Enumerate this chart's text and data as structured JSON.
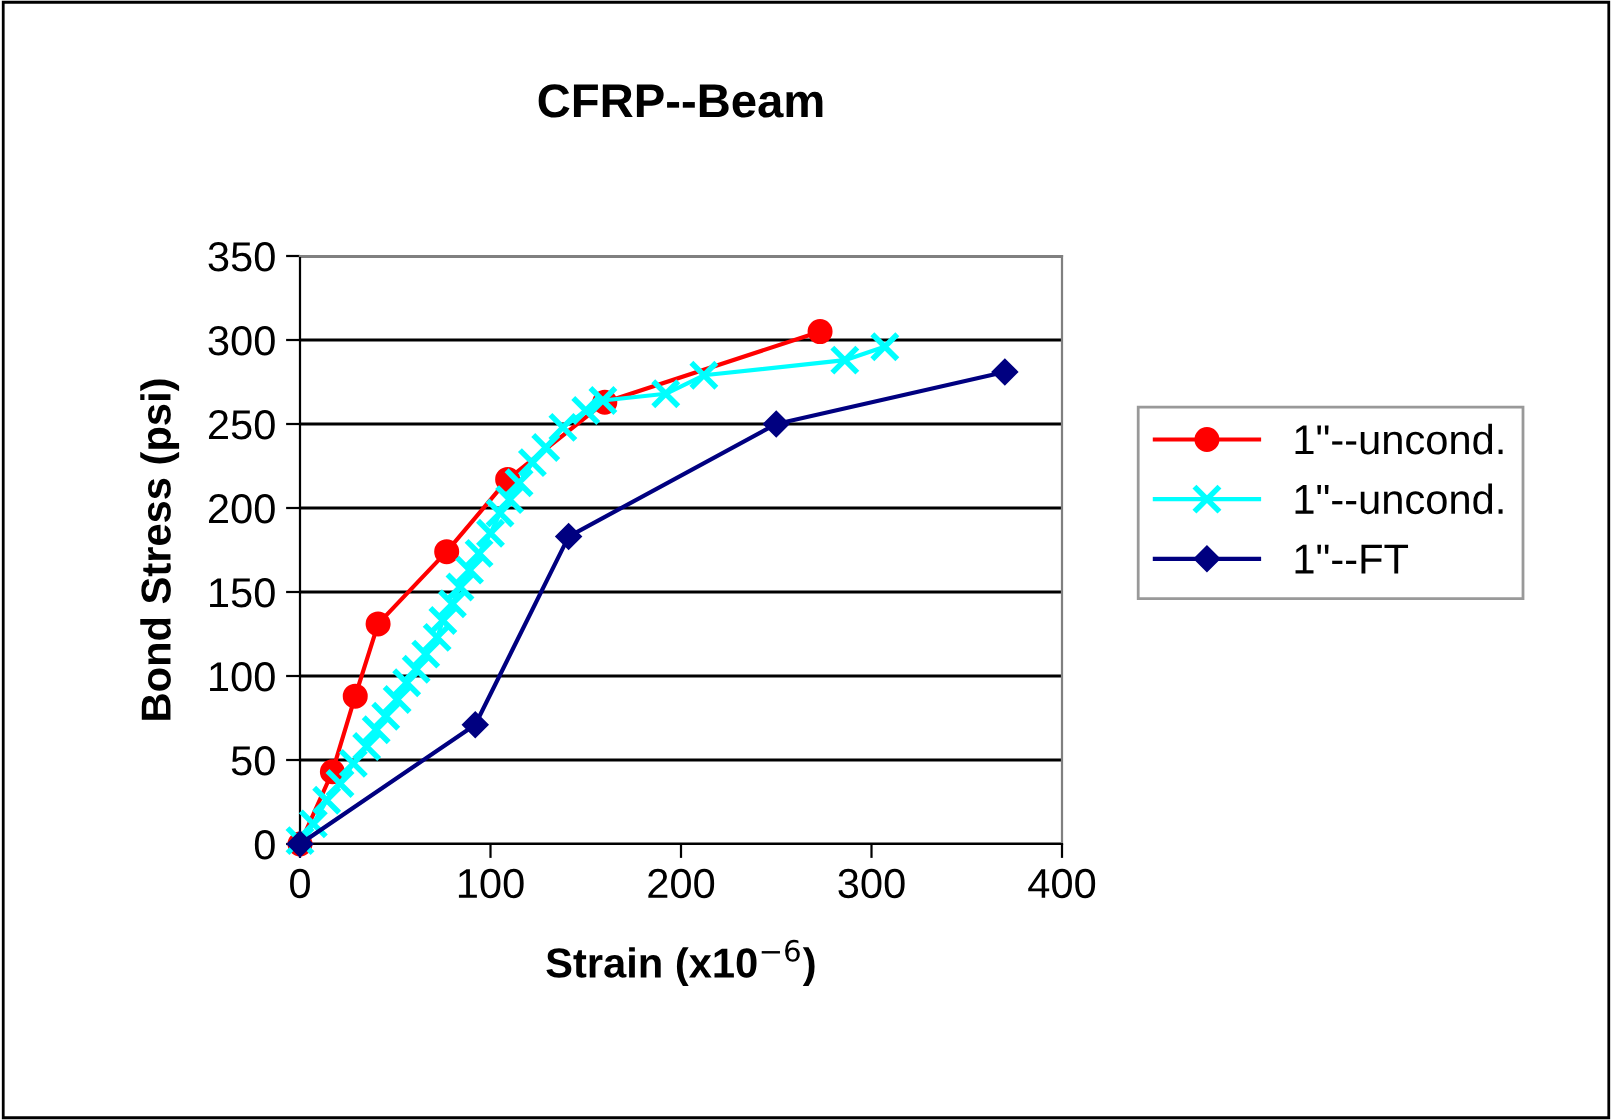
{
  "chart_data": {
    "type": "line",
    "title": "CFRP--Beam",
    "xlabel": "Strain (x10$^{−6}$)",
    "ylabel": "Bond Stress (psi)",
    "xlim": [
      0,
      400
    ],
    "xticks": [
      0,
      100,
      200,
      300,
      400
    ],
    "ylim": [
      0,
      350
    ],
    "yticks": [
      0,
      50,
      100,
      150,
      200,
      250,
      300,
      350
    ],
    "grid": "y",
    "legend": "right",
    "series": [
      {
        "name": "1\"--uncond.",
        "color": "#ff0000",
        "marker": "circle",
        "x": [
          0,
          17,
          29,
          41,
          77,
          109,
          160,
          273
        ],
        "values": [
          0,
          43,
          88,
          131,
          174,
          217,
          263,
          305
        ]
      },
      {
        "name": "1\"--uncond.",
        "color": "#00ffff",
        "marker": "cross",
        "x": [
          0,
          7,
          14,
          21,
          28,
          35,
          40,
          45,
          51,
          56,
          61,
          66,
          72,
          75,
          80,
          84,
          89,
          94,
          100,
          105,
          110,
          115,
          122,
          129,
          138,
          150,
          159,
          192,
          212,
          286,
          307
        ],
        "values": [
          2,
          12,
          26,
          36,
          48,
          58,
          68,
          76,
          86,
          96,
          104,
          113,
          123,
          133,
          143,
          153,
          163,
          173,
          185,
          197,
          205,
          215,
          227,
          236,
          248,
          258,
          264,
          268,
          279,
          288,
          296
        ]
      },
      {
        "name": "1\"--FT",
        "color": "#000080",
        "marker": "diamond",
        "x": [
          0,
          92,
          141,
          250,
          370
        ],
        "values": [
          0,
          71,
          183,
          250,
          281
        ]
      }
    ]
  }
}
